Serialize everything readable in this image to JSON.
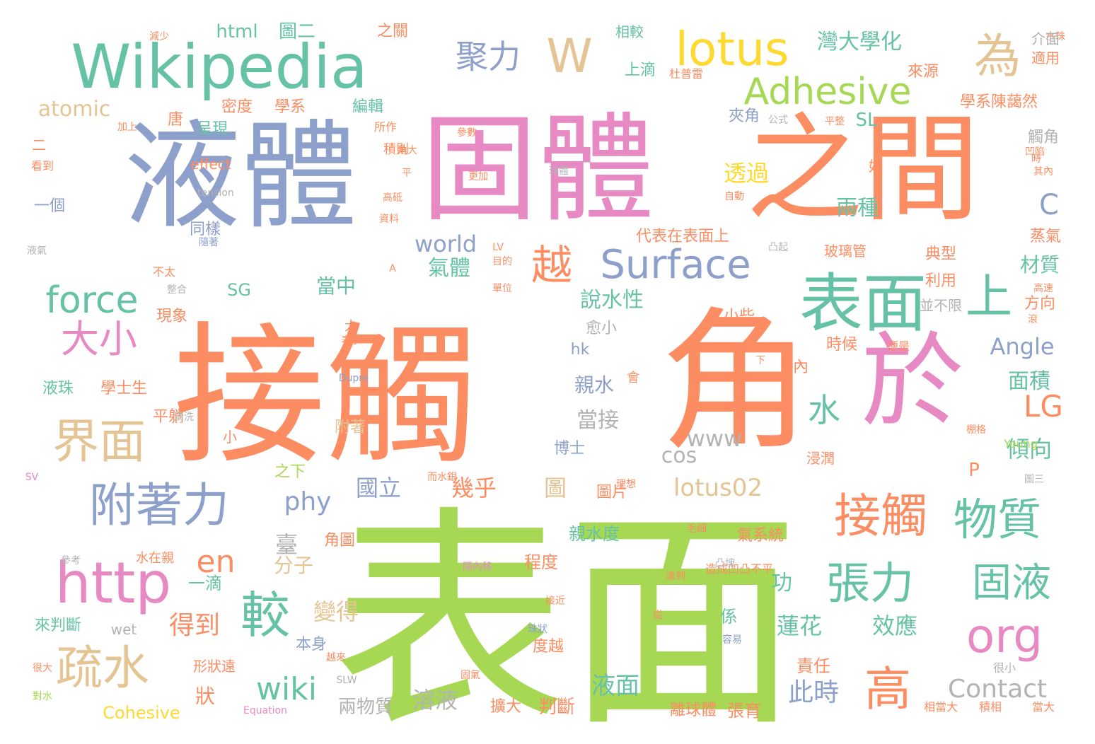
{
  "palette": {
    "green": "#66c2a5",
    "orange": "#fc8d62",
    "blue": "#8da0cb",
    "pink": "#e78ac3",
    "lime": "#a6d854",
    "yellow": "#ffd92f",
    "tan": "#e5c494",
    "gray": "#b3b3b3"
  },
  "words": [
    "表面",
    "接觸",
    "角",
    "液體",
    "固體",
    "之間",
    "於",
    "Wikipedia",
    "表面",
    "lotus",
    "為",
    "W",
    "上",
    "越",
    "Surface",
    "Adhesive",
    "界面",
    "附著力",
    "接觸",
    "物質",
    "http",
    "較",
    "高",
    "張力",
    "固液",
    "org",
    "疏水",
    "聚力",
    "大小",
    "force",
    "en",
    "wiki",
    "水",
    "LG",
    "灣大學化",
    "atomic",
    "html",
    "圖二",
    "之關",
    "相較",
    "學系陳藹然",
    "親水",
    "world",
    "Angle",
    "phy",
    "lotus02",
    "透過",
    "兩種",
    "氣體",
    "當中",
    "說水性",
    "SG",
    "SL",
    "C",
    "材質",
    "典型",
    "利用",
    "方向",
    "上滴",
    "夾角",
    "觸角",
    "時候",
    "面積",
    "內",
    "傾向",
    "P",
    "當接",
    "www",
    "cos",
    "國立",
    "幾乎",
    "圖",
    "圖片",
    "分子",
    "臺",
    "親水度",
    "氣系統",
    "角圖",
    "程度",
    "功",
    "一滴",
    "得到",
    "變得",
    "蓮花",
    "效應",
    "此時",
    "Contact",
    "液面",
    "溶液",
    "兩物質",
    "判斷",
    "擴大",
    "離球體",
    "張育",
    "Cohesive",
    "狀",
    "度越",
    "責任",
    "係",
    "本身",
    "形狀遠",
    "來判斷",
    "液珠",
    "學士生",
    "博士",
    "附著",
    "小",
    "之下",
    "平躺",
    "現象",
    "一個",
    "同樣",
    "唐",
    "呈現",
    "密度",
    "學系",
    "編輯",
    "來源",
    "代表在表面上",
    "水在親",
    "造成凹凸不平",
    "wet",
    "effect",
    "積則",
    "所作",
    "hk",
    "愈小",
    "小些",
    "玻璃管",
    "好",
    "並不限",
    "相當大",
    "積相",
    "當大",
    "便是",
    "很小",
    "減少",
    "加上",
    "二",
    "看到",
    "液氣",
    "不太",
    "SV",
    "很大",
    "對水",
    "Equation",
    "清洗",
    "而水銀",
    "理想",
    "浸潤",
    "圖三",
    "Young",
    "棚格",
    "下",
    "會",
    "Dupre",
    "大",
    "表示",
    "水珠",
    "介面",
    "適用",
    "杜普雷",
    "公式",
    "平整",
    "凹陷",
    "其內",
    "蒸氣",
    "高速",
    "滾",
    "凸起",
    "目的",
    "單位",
    "LV",
    "毛細",
    "達到",
    "凸塊",
    "從",
    "容易",
    "接近",
    "珠狀",
    "SLW",
    "越來",
    "固氣",
    "平",
    "隔內移",
    "參考",
    "A",
    "資料",
    "高砥",
    "自動",
    "更加",
    "參數",
    "球體",
    "整合",
    "角大",
    "隨著",
    "tension",
    "時",
    "零得"
  ]
}
